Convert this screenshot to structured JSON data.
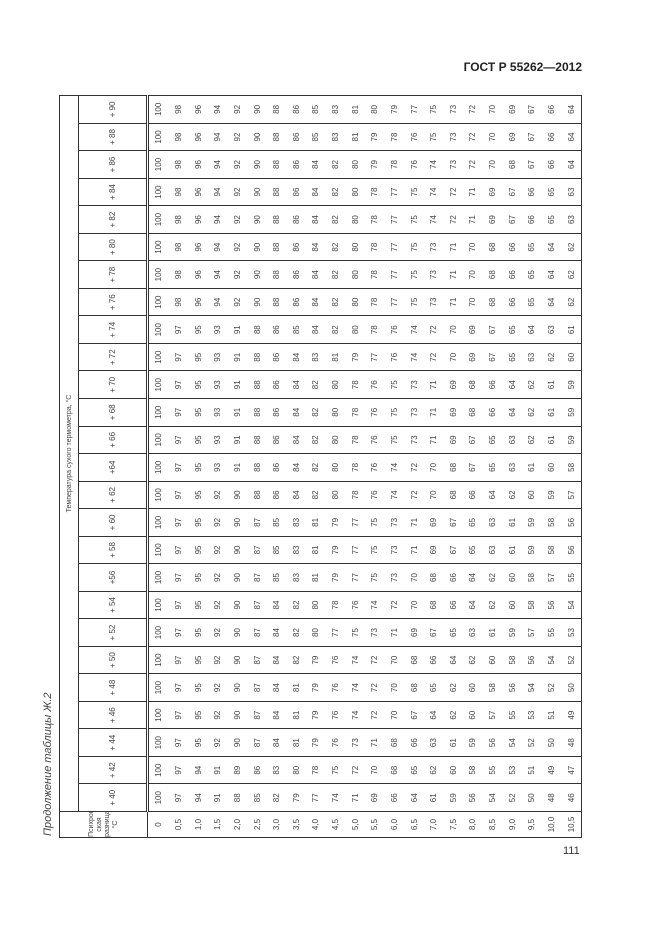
{
  "header": {
    "document_code": "ГОСТ Р 55262—2012"
  },
  "caption": "Продолжение таблицы Ж.2",
  "table": {
    "psychrometric_header": "Психрометриче-ская разница, °С",
    "temperature_header": "Температура сухого термометра, °С",
    "temperatures": [
      "+ 40",
      "+ 42",
      "+ 44",
      "+ 46",
      "+ 48",
      "+ 50",
      "+ 52",
      "+ 54",
      "+56",
      "+ 58",
      "+ 60",
      "+ 62",
      "+64",
      "+ 66",
      "+ 68",
      "+ 70",
      "+ 72",
      "+ 74",
      "+ 76",
      "+ 78",
      "+ 80",
      "+ 82",
      "+ 84",
      "+ 86",
      "+ 88",
      "+ 90"
    ],
    "psychrometric_differences": [
      "0",
      "0,5",
      "1,0",
      "1,5",
      "2,0",
      "2,5",
      "3,0",
      "3,5",
      "4,0",
      "4,5",
      "5,0",
      "5,5",
      "6,0",
      "6,5",
      "7,0",
      "7,5",
      "8,0",
      "8,5",
      "9,0",
      "9,5",
      "10,0",
      "10,5"
    ],
    "values_by_temperature": [
      [
        100,
        97,
        94,
        91,
        88,
        85,
        82,
        79,
        77,
        74,
        71,
        69,
        66,
        64,
        61,
        59,
        56,
        54,
        52,
        50,
        48,
        46
      ],
      [
        100,
        97,
        94,
        91,
        89,
        86,
        83,
        80,
        78,
        75,
        72,
        70,
        68,
        65,
        62,
        60,
        58,
        55,
        53,
        51,
        49,
        47
      ],
      [
        100,
        97,
        95,
        92,
        90,
        87,
        84,
        81,
        79,
        76,
        73,
        71,
        68,
        66,
        63,
        61,
        59,
        56,
        54,
        52,
        50,
        48
      ],
      [
        100,
        97,
        95,
        92,
        90,
        87,
        84,
        81,
        79,
        76,
        74,
        72,
        70,
        67,
        64,
        62,
        60,
        57,
        55,
        53,
        51,
        49
      ],
      [
        100,
        97,
        95,
        92,
        90,
        87,
        84,
        81,
        79,
        76,
        74,
        72,
        70,
        68,
        65,
        62,
        60,
        58,
        56,
        54,
        52,
        50
      ],
      [
        100,
        97,
        95,
        92,
        90,
        87,
        84,
        82,
        79,
        76,
        74,
        72,
        70,
        68,
        66,
        64,
        62,
        60,
        58,
        56,
        54,
        52
      ],
      [
        100,
        97,
        95,
        92,
        90,
        87,
        84,
        82,
        80,
        77,
        75,
        73,
        71,
        69,
        67,
        65,
        63,
        61,
        59,
        57,
        55,
        53
      ],
      [
        100,
        97,
        95,
        92,
        90,
        87,
        84,
        82,
        80,
        78,
        76,
        74,
        72,
        70,
        68,
        66,
        64,
        62,
        60,
        58,
        56,
        54
      ],
      [
        100,
        97,
        95,
        92,
        90,
        87,
        85,
        83,
        81,
        79,
        77,
        75,
        73,
        70,
        68,
        66,
        64,
        62,
        60,
        58,
        57,
        55
      ],
      [
        100,
        97,
        95,
        92,
        90,
        87,
        85,
        83,
        81,
        79,
        77,
        75,
        73,
        71,
        69,
        67,
        65,
        63,
        61,
        59,
        58,
        56
      ],
      [
        100,
        97,
        95,
        92,
        90,
        87,
        85,
        83,
        81,
        79,
        77,
        75,
        73,
        71,
        69,
        67,
        65,
        63,
        61,
        59,
        58,
        56
      ],
      [
        100,
        97,
        95,
        92,
        90,
        88,
        86,
        84,
        82,
        80,
        78,
        76,
        74,
        72,
        70,
        68,
        66,
        64,
        62,
        60,
        59,
        57
      ],
      [
        100,
        97,
        95,
        93,
        91,
        88,
        86,
        84,
        82,
        80,
        78,
        76,
        74,
        72,
        70,
        68,
        67,
        65,
        63,
        61,
        60,
        58
      ],
      [
        100,
        97,
        95,
        93,
        91,
        88,
        86,
        84,
        82,
        80,
        78,
        76,
        75,
        73,
        71,
        69,
        67,
        65,
        63,
        62,
        61,
        59
      ],
      [
        100,
        97,
        95,
        93,
        91,
        88,
        86,
        84,
        82,
        80,
        78,
        76,
        75,
        73,
        71,
        69,
        68,
        66,
        64,
        62,
        61,
        59
      ],
      [
        100,
        97,
        95,
        93,
        91,
        88,
        86,
        84,
        82,
        80,
        78,
        76,
        75,
        73,
        71,
        69,
        68,
        66,
        64,
        62,
        61,
        59
      ],
      [
        100,
        97,
        95,
        93,
        91,
        88,
        86,
        84,
        83,
        81,
        79,
        77,
        76,
        74,
        72,
        70,
        69,
        67,
        65,
        63,
        62,
        60
      ],
      [
        100,
        97,
        95,
        93,
        91,
        88,
        86,
        85,
        84,
        82,
        80,
        78,
        76,
        74,
        72,
        70,
        69,
        67,
        65,
        64,
        63,
        61
      ],
      [
        100,
        98,
        96,
        94,
        92,
        90,
        88,
        86,
        84,
        82,
        80,
        78,
        77,
        75,
        73,
        71,
        70,
        68,
        66,
        65,
        64,
        62
      ],
      [
        100,
        98,
        96,
        94,
        92,
        90,
        88,
        86,
        84,
        82,
        80,
        78,
        77,
        75,
        73,
        71,
        70,
        68,
        66,
        65,
        64,
        62
      ],
      [
        100,
        98,
        96,
        94,
        92,
        90,
        88,
        86,
        84,
        82,
        80,
        78,
        77,
        75,
        73,
        71,
        70,
        68,
        66,
        65,
        64,
        62
      ],
      [
        100,
        98,
        96,
        94,
        92,
        90,
        88,
        86,
        84,
        82,
        80,
        78,
        77,
        75,
        74,
        72,
        71,
        69,
        67,
        66,
        65,
        63
      ],
      [
        100,
        98,
        96,
        94,
        92,
        90,
        88,
        86,
        84,
        82,
        80,
        78,
        77,
        75,
        74,
        72,
        71,
        69,
        67,
        66,
        65,
        63
      ],
      [
        100,
        98,
        96,
        94,
        92,
        90,
        88,
        86,
        84,
        82,
        80,
        79,
        78,
        76,
        74,
        73,
        72,
        70,
        68,
        67,
        66,
        64
      ],
      [
        100,
        98,
        96,
        94,
        92,
        90,
        88,
        86,
        85,
        83,
        81,
        79,
        78,
        76,
        75,
        73,
        72,
        70,
        69,
        67,
        66,
        64
      ],
      [
        100,
        98,
        96,
        94,
        92,
        90,
        88,
        86,
        85,
        83,
        81,
        80,
        79,
        77,
        75,
        73,
        72,
        70,
        69,
        67,
        66,
        64
      ]
    ]
  },
  "footer": {
    "page_number": "111"
  }
}
